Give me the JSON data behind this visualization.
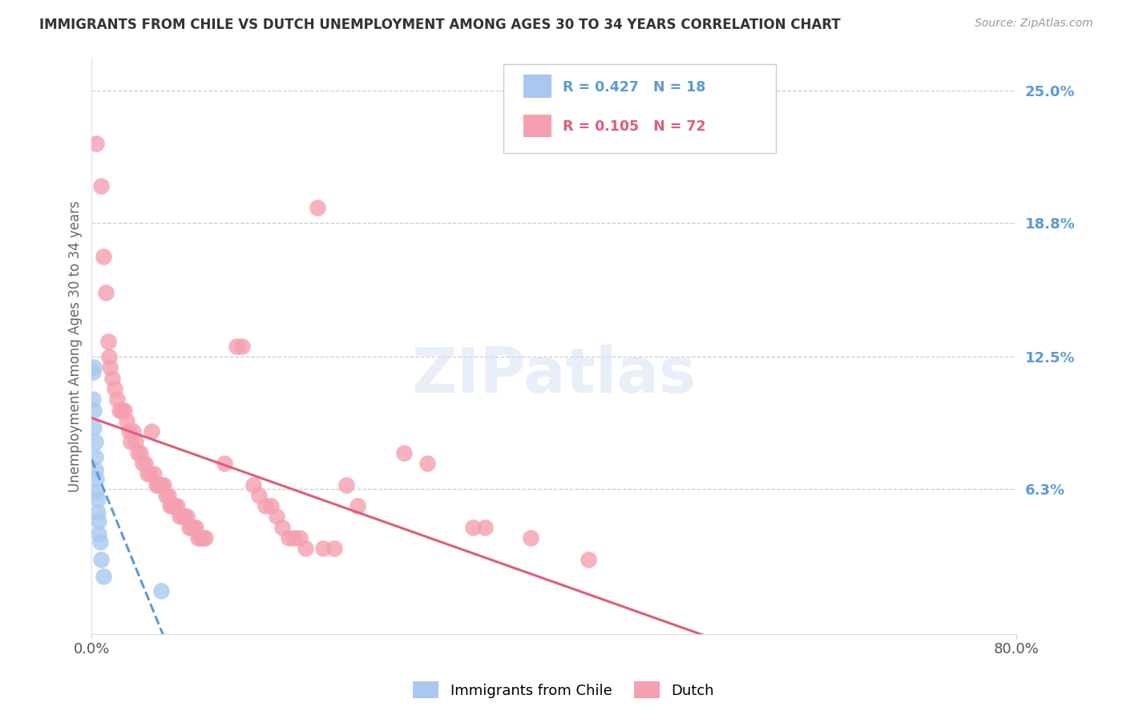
{
  "title": "IMMIGRANTS FROM CHILE VS DUTCH UNEMPLOYMENT AMONG AGES 30 TO 34 YEARS CORRELATION CHART",
  "source": "Source: ZipAtlas.com",
  "ylabel": "Unemployment Among Ages 30 to 34 years",
  "watermark": "ZIPatlas",
  "xlim": [
    0.0,
    0.8
  ],
  "ylim": [
    -0.005,
    0.265
  ],
  "xticks": [
    0.0,
    0.8
  ],
  "xticklabels": [
    "0.0%",
    "80.0%"
  ],
  "ytick_positions": [
    0.063,
    0.125,
    0.188,
    0.25
  ],
  "ytick_labels": [
    "6.3%",
    "12.5%",
    "18.8%",
    "25.0%"
  ],
  "chile_R": "0.427",
  "chile_N": "18",
  "dutch_R": "0.105",
  "dutch_N": "72",
  "chile_scatter": [
    [
      0.001,
      0.118
    ],
    [
      0.001,
      0.105
    ],
    [
      0.002,
      0.12
    ],
    [
      0.002,
      0.1
    ],
    [
      0.002,
      0.092
    ],
    [
      0.003,
      0.085
    ],
    [
      0.003,
      0.078
    ],
    [
      0.003,
      0.072
    ],
    [
      0.004,
      0.068
    ],
    [
      0.004,
      0.062
    ],
    [
      0.005,
      0.058
    ],
    [
      0.005,
      0.052
    ],
    [
      0.006,
      0.048
    ],
    [
      0.006,
      0.042
    ],
    [
      0.007,
      0.038
    ],
    [
      0.008,
      0.03
    ],
    [
      0.01,
      0.022
    ],
    [
      0.06,
      0.015
    ]
  ],
  "dutch_scatter": [
    [
      0.004,
      0.225
    ],
    [
      0.008,
      0.205
    ],
    [
      0.01,
      0.172
    ],
    [
      0.012,
      0.155
    ],
    [
      0.014,
      0.132
    ],
    [
      0.015,
      0.125
    ],
    [
      0.016,
      0.12
    ],
    [
      0.018,
      0.115
    ],
    [
      0.02,
      0.11
    ],
    [
      0.022,
      0.105
    ],
    [
      0.024,
      0.1
    ],
    [
      0.026,
      0.1
    ],
    [
      0.028,
      0.1
    ],
    [
      0.03,
      0.095
    ],
    [
      0.032,
      0.09
    ],
    [
      0.034,
      0.085
    ],
    [
      0.036,
      0.09
    ],
    [
      0.038,
      0.085
    ],
    [
      0.04,
      0.08
    ],
    [
      0.042,
      0.08
    ],
    [
      0.044,
      0.075
    ],
    [
      0.046,
      0.075
    ],
    [
      0.048,
      0.07
    ],
    [
      0.05,
      0.07
    ],
    [
      0.052,
      0.09
    ],
    [
      0.054,
      0.07
    ],
    [
      0.056,
      0.065
    ],
    [
      0.058,
      0.065
    ],
    [
      0.06,
      0.065
    ],
    [
      0.062,
      0.065
    ],
    [
      0.064,
      0.06
    ],
    [
      0.066,
      0.06
    ],
    [
      0.068,
      0.055
    ],
    [
      0.07,
      0.055
    ],
    [
      0.072,
      0.055
    ],
    [
      0.074,
      0.055
    ],
    [
      0.076,
      0.05
    ],
    [
      0.078,
      0.05
    ],
    [
      0.08,
      0.05
    ],
    [
      0.082,
      0.05
    ],
    [
      0.084,
      0.045
    ],
    [
      0.086,
      0.045
    ],
    [
      0.088,
      0.045
    ],
    [
      0.09,
      0.045
    ],
    [
      0.092,
      0.04
    ],
    [
      0.094,
      0.04
    ],
    [
      0.096,
      0.04
    ],
    [
      0.098,
      0.04
    ],
    [
      0.115,
      0.075
    ],
    [
      0.125,
      0.13
    ],
    [
      0.13,
      0.13
    ],
    [
      0.14,
      0.065
    ],
    [
      0.145,
      0.06
    ],
    [
      0.15,
      0.055
    ],
    [
      0.155,
      0.055
    ],
    [
      0.16,
      0.05
    ],
    [
      0.165,
      0.045
    ],
    [
      0.17,
      0.04
    ],
    [
      0.175,
      0.04
    ],
    [
      0.18,
      0.04
    ],
    [
      0.185,
      0.035
    ],
    [
      0.195,
      0.195
    ],
    [
      0.2,
      0.035
    ],
    [
      0.21,
      0.035
    ],
    [
      0.22,
      0.065
    ],
    [
      0.23,
      0.055
    ],
    [
      0.27,
      0.08
    ],
    [
      0.29,
      0.075
    ],
    [
      0.33,
      0.045
    ],
    [
      0.34,
      0.045
    ],
    [
      0.38,
      0.04
    ],
    [
      0.43,
      0.03
    ]
  ],
  "chile_line_color": "#5b9bd5",
  "dutch_line_color": "#e05c78",
  "chile_scatter_color": "#a8c8f0",
  "dutch_scatter_color": "#f4a0b0",
  "grid_color": "#cccccc",
  "title_color": "#333333",
  "axis_label_color": "#666666",
  "right_tick_color": "#5b9bd5",
  "background_color": "#ffffff",
  "chile_trend_x": [
    0.0,
    0.12
  ],
  "dutch_trend_x": [
    0.0,
    0.8
  ]
}
